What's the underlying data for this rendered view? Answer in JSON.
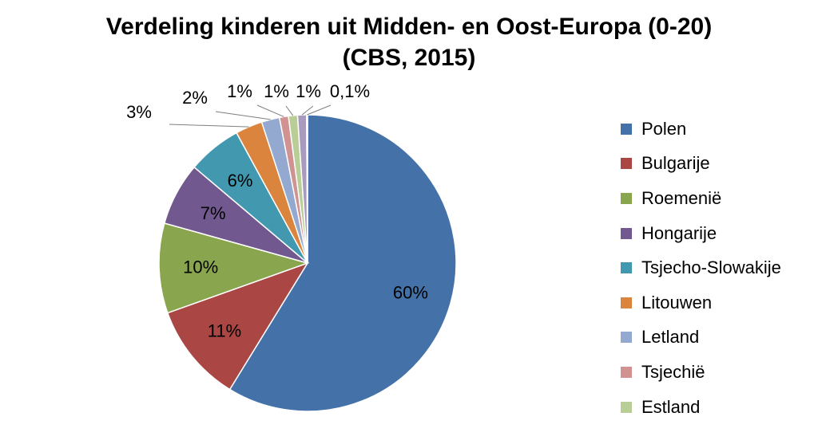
{
  "chart_data": {
    "type": "pie",
    "title_lines": [
      "Verdeling kinderen uit Midden- en Oost-Europa (0-20)",
      "(CBS, 2015)"
    ],
    "start_angle_deg": 0,
    "direction": "clockwise",
    "slices": [
      {
        "label": "Polen",
        "value": 60,
        "display": "60%",
        "color": "#4472A8",
        "label_position": "inside"
      },
      {
        "label": "Bulgarije",
        "value": 11,
        "display": "11%",
        "color": "#AA4643",
        "label_position": "inside"
      },
      {
        "label": "Roemenië",
        "value": 10,
        "display": "10%",
        "color": "#89A54E",
        "label_position": "inside"
      },
      {
        "label": "Hongarije",
        "value": 7,
        "display": "7%",
        "color": "#71588F",
        "label_position": "inside"
      },
      {
        "label": "Tsjecho-Slowakije",
        "value": 6,
        "display": "6%",
        "color": "#4198AF",
        "label_position": "inside"
      },
      {
        "label": "Litouwen",
        "value": 3,
        "display": "3%",
        "color": "#DB843D",
        "label_position": "outside"
      },
      {
        "label": "Letland",
        "value": 2,
        "display": "2%",
        "color": "#93A9CF",
        "label_position": "outside"
      },
      {
        "label": "Tsjechië",
        "value": 1,
        "display": "1%",
        "color": "#D19392",
        "label_position": "outside"
      },
      {
        "label": "Estland",
        "value": 1,
        "display": "1%",
        "color": "#B9CD96",
        "label_position": "outside"
      },
      {
        "label": "",
        "value": 1,
        "display": "1%",
        "color": "#A99BBD",
        "label_position": "outside"
      },
      {
        "label": "",
        "value": 0.1,
        "display": "0,1%",
        "color": "#92C3D4",
        "label_position": "outside"
      }
    ],
    "legend": {
      "placement": "right",
      "entries": [
        "Polen",
        "Bulgarije",
        "Roemenië",
        "Hongarije",
        "Tsjecho-Slowakije",
        "Litouwen",
        "Letland",
        "Tsjechië",
        "Estland"
      ]
    }
  }
}
